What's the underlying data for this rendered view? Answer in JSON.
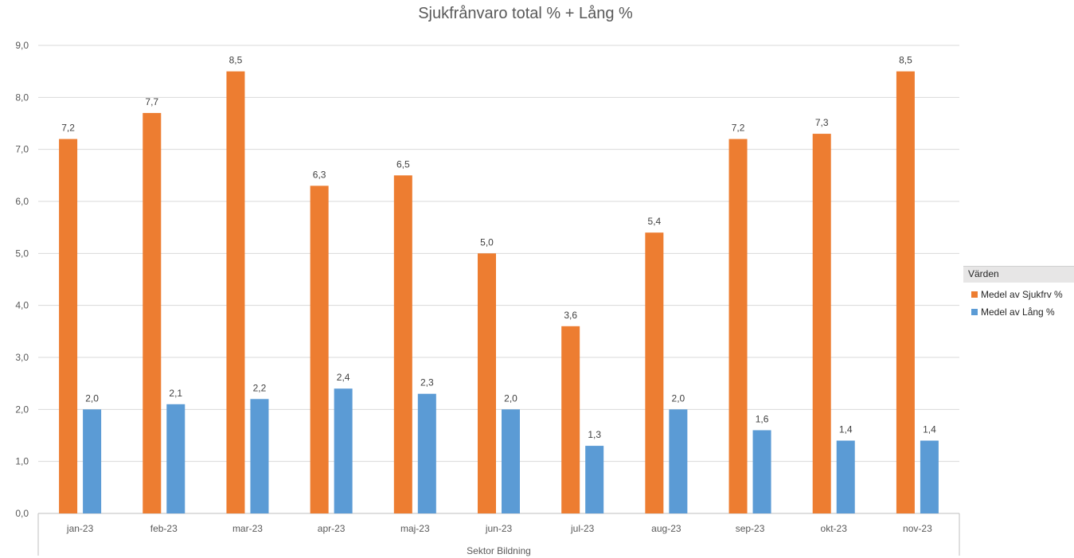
{
  "chart_data": {
    "type": "bar",
    "title": "Sjukfrånvaro total % + Lång %",
    "xlabel": "Sektor Bildning",
    "ylabel": "",
    "categories": [
      "jan-23",
      "feb-23",
      "mar-23",
      "apr-23",
      "maj-23",
      "jun-23",
      "jul-23",
      "aug-23",
      "sep-23",
      "okt-23",
      "nov-23"
    ],
    "series": [
      {
        "name": "Medel av Sjukfrv %",
        "color": "#ed7d31",
        "values": [
          7.2,
          7.7,
          8.5,
          6.3,
          6.5,
          5.0,
          3.6,
          5.4,
          7.2,
          7.3,
          8.5
        ],
        "labels": [
          "7,2",
          "7,7",
          "8,5",
          "6,3",
          "6,5",
          "5,0",
          "3,6",
          "5,4",
          "7,2",
          "7,3",
          "8,5"
        ]
      },
      {
        "name": "Medel av Lång %",
        "color": "#5b9bd5",
        "values": [
          2.0,
          2.1,
          2.2,
          2.4,
          2.3,
          2.0,
          1.3,
          2.0,
          1.6,
          1.4,
          1.4
        ],
        "labels": [
          "2,0",
          "2,1",
          "2,2",
          "2,4",
          "2,3",
          "2,0",
          "1,3",
          "2,0",
          "1,6",
          "1,4",
          "1,4"
        ]
      }
    ],
    "ylim": [
      0,
      9
    ],
    "yticks": [
      "0,0",
      "1,0",
      "2,0",
      "3,0",
      "4,0",
      "5,0",
      "6,0",
      "7,0",
      "8,0",
      "9,0"
    ],
    "grid": true,
    "legend_title": "Värden",
    "legend_position": "right"
  }
}
